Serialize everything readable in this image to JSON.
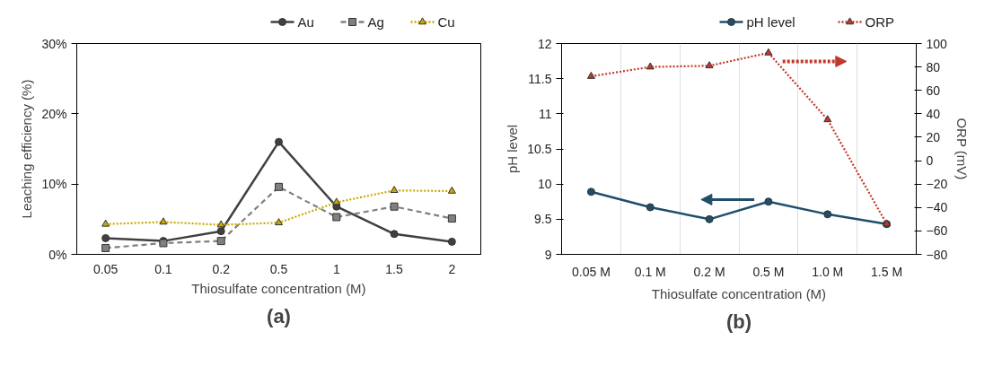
{
  "chart_data": [
    {
      "type": "line",
      "xlabel": "Thiosulfate concentration (M)",
      "ylabel": "Leaching efficiency (%)",
      "categories": [
        "0.05",
        "0.1",
        "0.2",
        "0.5",
        "1",
        "1.5",
        "2"
      ],
      "series": [
        {
          "name": "Au",
          "color": "#404040",
          "marker": "circle",
          "line_style": "solid",
          "values": [
            2.3,
            1.9,
            3.3,
            16.0,
            6.8,
            2.9,
            1.8
          ]
        },
        {
          "name": "Ag",
          "color": "#808080",
          "marker": "square",
          "line_style": "dashed",
          "values": [
            0.9,
            1.6,
            1.9,
            9.6,
            5.3,
            6.8,
            5.1
          ]
        },
        {
          "name": "Cu",
          "color": "#c9a800",
          "marker": "triangle",
          "line_style": "dotted",
          "values": [
            4.3,
            4.6,
            4.2,
            4.5,
            7.4,
            9.1,
            9.0
          ]
        }
      ],
      "ylim": [
        0,
        30
      ],
      "yticks": [
        {
          "value": 0,
          "label": "0%"
        },
        {
          "value": 10,
          "label": "10%"
        },
        {
          "value": 20,
          "label": "20%"
        },
        {
          "value": 30,
          "label": "30%"
        }
      ],
      "grid": false,
      "legend": "top right",
      "annotations": [
        "(a)"
      ]
    },
    {
      "type": "line",
      "xlabel": "Thiosulfate concentration (M)",
      "ylabel": "pH level",
      "y2label": "ORP (mV)",
      "categories": [
        "0.05 M",
        "0.1 M",
        "0.2 M",
        "0.5 M",
        "1.0 M",
        "1.5 M"
      ],
      "series": [
        {
          "name": "pH level",
          "color": "#1f4e6b",
          "marker": "circle",
          "line_style": "solid",
          "values": [
            9.89,
            9.67,
            9.5,
            9.75,
            9.57,
            9.43
          ]
        },
        {
          "name": "ORP",
          "color": "#c0392b",
          "marker": "triangle",
          "line_style": "dotted",
          "axis": "y2",
          "values": [
            72,
            80,
            81,
            92,
            35,
            -54
          ]
        }
      ],
      "ylim": [
        9,
        12
      ],
      "yticks": [
        9,
        9.5,
        10,
        10.5,
        11,
        11.5,
        12
      ],
      "y2lim": [
        -80,
        100
      ],
      "y2ticks": [
        -80,
        -60,
        -40,
        -20,
        0,
        20,
        40,
        60,
        80,
        100
      ],
      "grid": "x",
      "legend": "top right",
      "annotations": [
        "(b)"
      ]
    }
  ]
}
